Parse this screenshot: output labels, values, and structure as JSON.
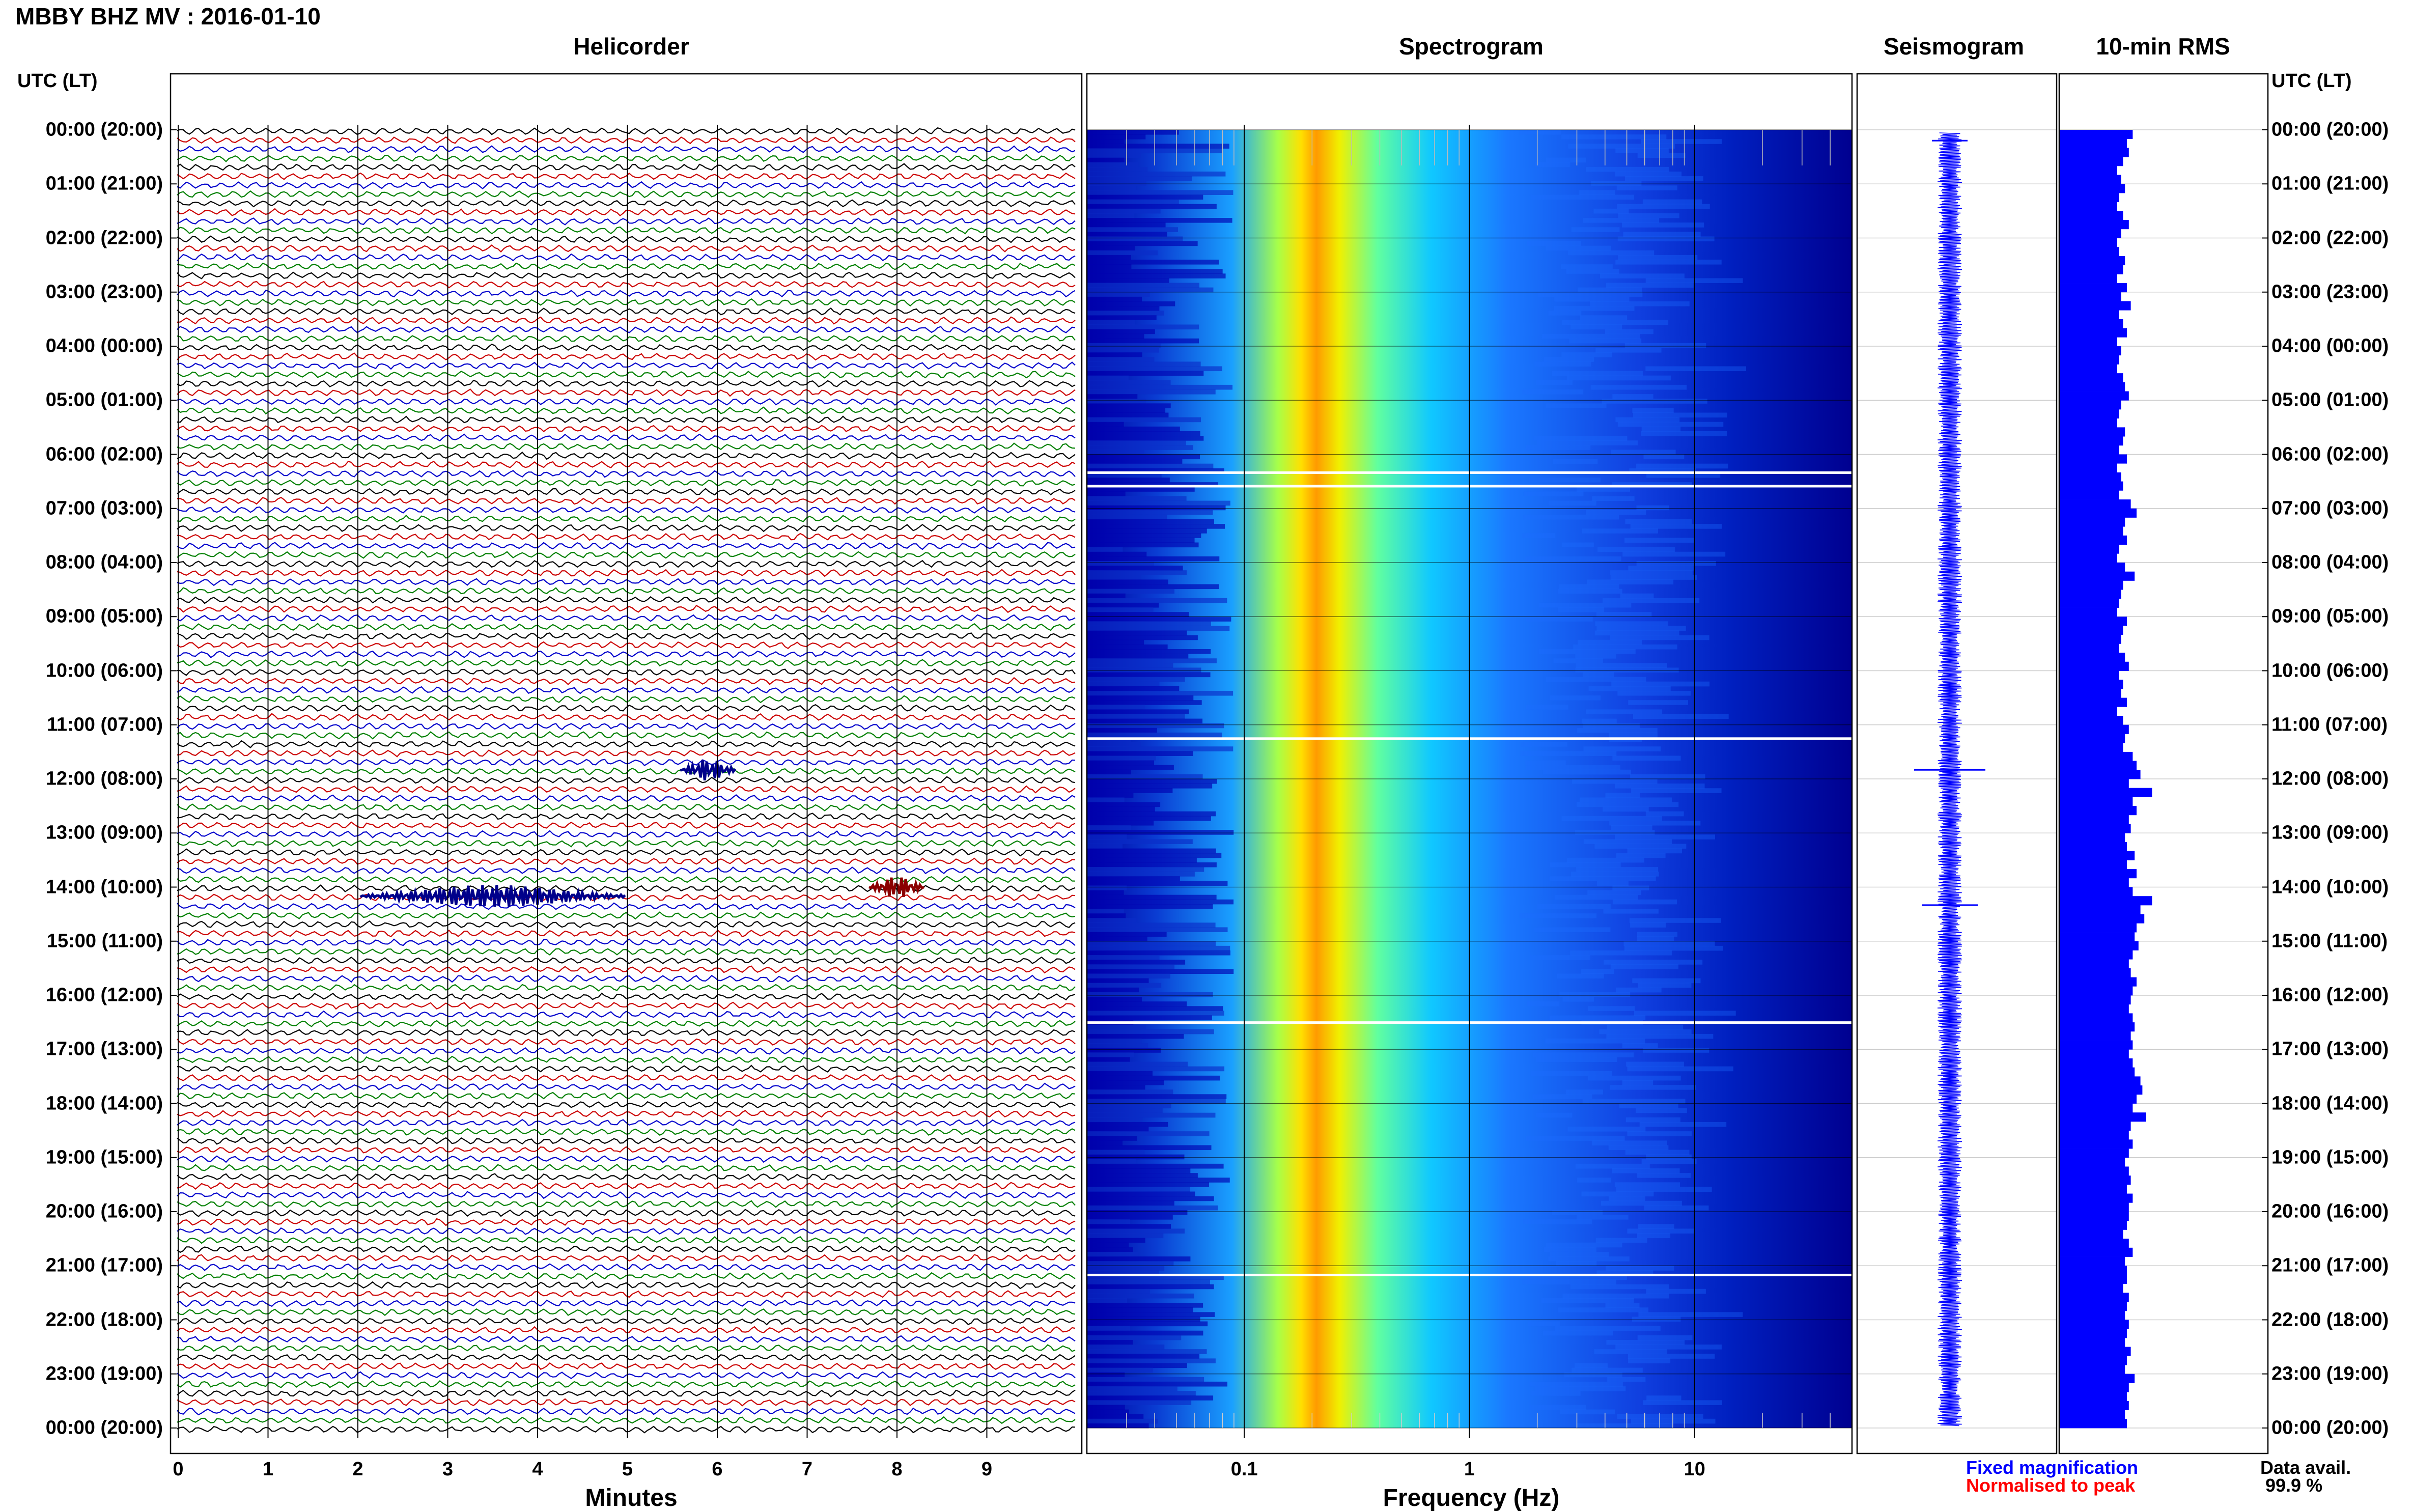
{
  "title": "MBBY BHZ MV : 2016-01-10",
  "panels": {
    "helicorder": "Helicorder",
    "spectrogram": "Spectrogram",
    "seismogram": "Seismogram",
    "rms": "10-min RMS"
  },
  "utc_header": "UTC (LT)",
  "time_labels": [
    "00:00 (20:00)",
    "01:00 (21:00)",
    "02:00 (22:00)",
    "03:00 (23:00)",
    "04:00 (00:00)",
    "05:00 (01:00)",
    "06:00 (02:00)",
    "07:00 (03:00)",
    "08:00 (04:00)",
    "09:00 (05:00)",
    "10:00 (06:00)",
    "11:00 (07:00)",
    "12:00 (08:00)",
    "13:00 (09:00)",
    "14:00 (10:00)",
    "15:00 (11:00)",
    "16:00 (12:00)",
    "17:00 (13:00)",
    "18:00 (14:00)",
    "19:00 (15:00)",
    "20:00 (16:00)",
    "21:00 (17:00)",
    "22:00 (18:00)",
    "23:00 (19:00)",
    "00:00 (20:00)"
  ],
  "x_labels": {
    "helicorder": "Minutes",
    "spectrogram": "Frequency (Hz)"
  },
  "minute_ticks": [
    "0",
    "1",
    "2",
    "3",
    "4",
    "5",
    "6",
    "7",
    "8",
    "9"
  ],
  "frequency_ticks": [
    "0.1",
    "1",
    "10"
  ],
  "legend": {
    "fixed": "Fixed magnification",
    "normalised": "Normalised to peak"
  },
  "availability": {
    "label": "Data avail.",
    "value": "99.9 %"
  },
  "colors": {
    "trace_cycle": [
      "#000000",
      "#cc0000",
      "#0000cc",
      "#008000"
    ],
    "spectrogram_low": "#00008b",
    "spectrogram_high": "#ff0000",
    "seismogram": "#0000ff",
    "rms": "#0000ff"
  },
  "chart_data": [
    {
      "type": "line",
      "title": "Helicorder",
      "xlabel": "Minutes",
      "xlim": [
        0,
        10
      ],
      "rows_per_hour": 6,
      "hours": 24,
      "events": [
        {
          "utc": "11:50",
          "minute": 5.9
        },
        {
          "utc": "14:10",
          "minute": 3.5
        },
        {
          "utc": "14:00",
          "minute": 8.0
        }
      ]
    },
    {
      "type": "heatmap",
      "title": "Spectrogram",
      "xlabel": "Frequency (Hz)",
      "x_scale": "log",
      "xlim": [
        0.02,
        50
      ],
      "peak_frequency_hz": 0.22,
      "gaps_utc": [
        "06:20",
        "06:35",
        "11:15",
        "16:30",
        "21:10"
      ]
    },
    {
      "type": "line",
      "title": "Seismogram"
    },
    {
      "type": "bar",
      "title": "10-min RMS",
      "values": [
        0.38,
        0.35,
        0.36,
        0.33,
        0.3,
        0.32,
        0.34,
        0.31,
        0.3,
        0.33,
        0.36,
        0.32,
        0.3,
        0.31,
        0.34,
        0.33,
        0.3,
        0.35,
        0.32,
        0.37,
        0.31,
        0.33,
        0.35,
        0.3,
        0.32,
        0.31,
        0.3,
        0.33,
        0.34,
        0.36,
        0.32,
        0.31,
        0.3,
        0.34,
        0.33,
        0.31,
        0.35,
        0.3,
        0.32,
        0.33,
        0.31,
        0.37,
        0.4,
        0.34,
        0.33,
        0.35,
        0.31,
        0.3,
        0.34,
        0.39,
        0.33,
        0.32,
        0.31,
        0.3,
        0.35,
        0.33,
        0.32,
        0.31,
        0.34,
        0.36,
        0.31,
        0.33,
        0.32,
        0.35,
        0.3,
        0.33,
        0.36,
        0.34,
        0.33,
        0.38,
        0.4,
        0.42,
        0.36,
        0.48,
        0.38,
        0.4,
        0.36,
        0.37,
        0.34,
        0.35,
        0.39,
        0.35,
        0.4,
        0.36,
        0.38,
        0.48,
        0.42,
        0.44,
        0.4,
        0.39,
        0.41,
        0.38,
        0.36,
        0.37,
        0.4,
        0.38,
        0.37,
        0.36,
        0.38,
        0.39,
        0.37,
        0.38,
        0.36,
        0.38,
        0.39,
        0.42,
        0.43,
        0.4,
        0.38,
        0.45,
        0.37,
        0.36,
        0.38,
        0.36,
        0.34,
        0.36,
        0.37,
        0.35,
        0.38,
        0.36,
        0.36,
        0.35,
        0.33,
        0.36,
        0.38,
        0.34,
        0.35,
        0.35,
        0.33,
        0.36,
        0.35,
        0.34,
        0.36,
        0.35,
        0.34,
        0.37,
        0.35,
        0.34,
        0.39,
        0.36,
        0.35,
        0.36,
        0.34,
        0.35
      ]
    }
  ]
}
